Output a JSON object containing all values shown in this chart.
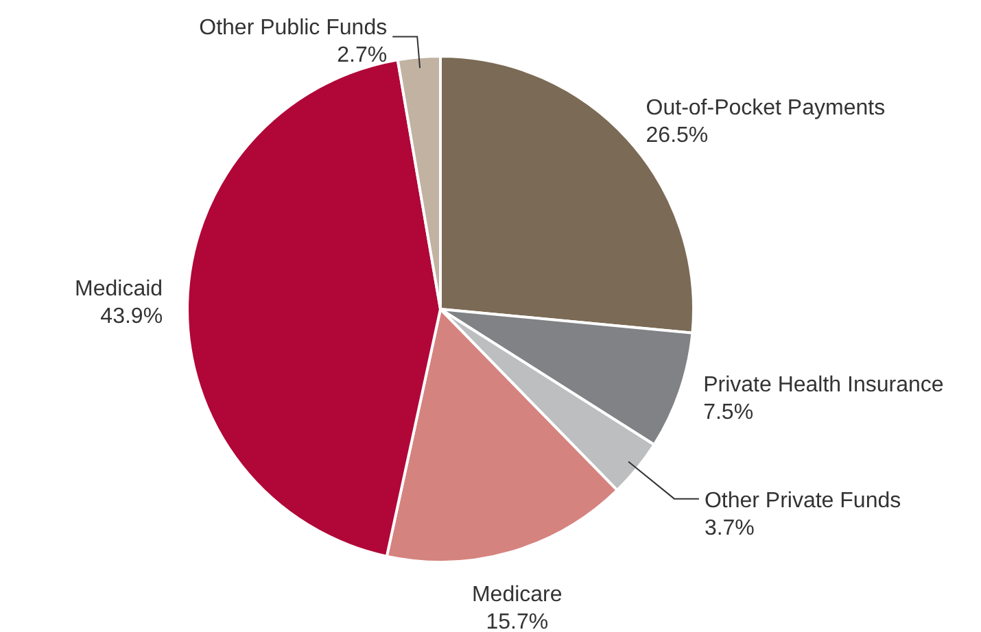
{
  "chart_data": {
    "type": "pie",
    "categories": [
      "Out-of-Pocket Payments",
      "Private Health Insurance",
      "Other Private Funds",
      "Medicare",
      "Medicaid",
      "Other Public Funds"
    ],
    "values": [
      26.5,
      7.5,
      3.7,
      15.7,
      43.9,
      2.7
    ],
    "value_labels": [
      "26.5%",
      "7.5%",
      "3.7%",
      "15.7%",
      "43.9%",
      "2.7%"
    ],
    "colors": [
      "#7b6a55",
      "#808285",
      "#bcbec0",
      "#d5837f",
      "#b10638",
      "#c1b2a2"
    ],
    "legend": false
  }
}
